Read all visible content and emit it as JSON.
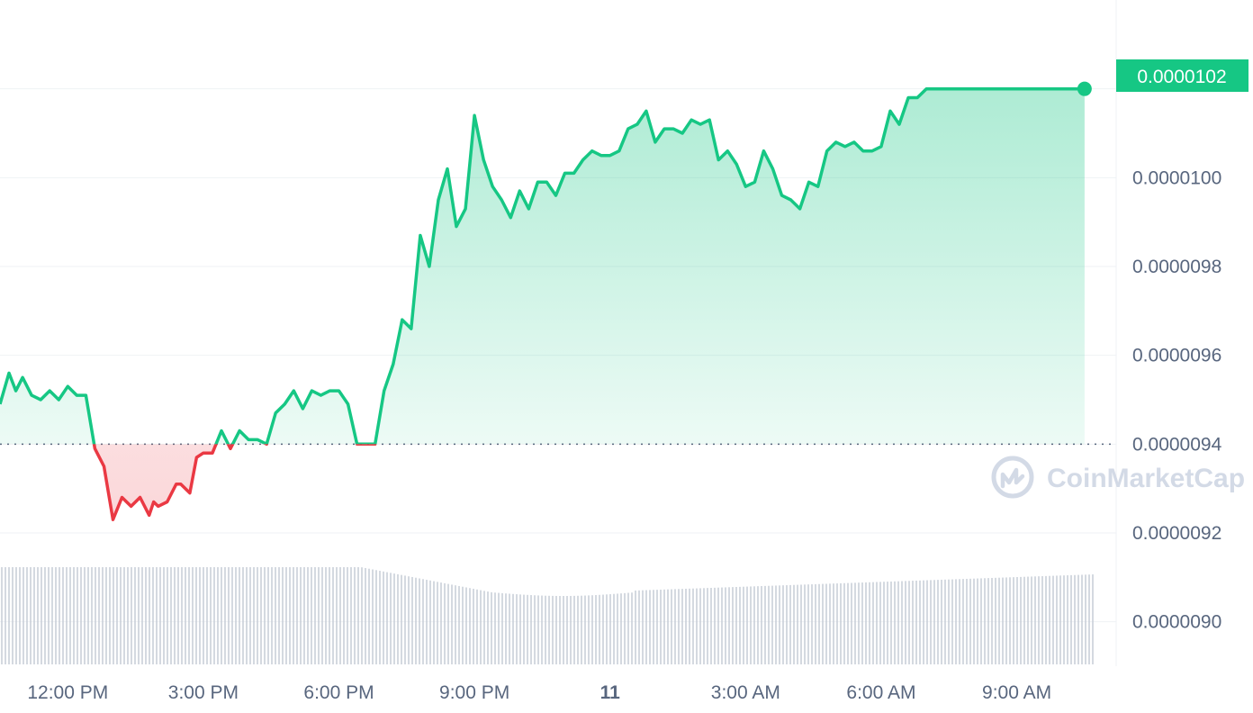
{
  "watermark": {
    "brand": "CoinMarketCap",
    "icon": "coinmarketcap-logo-icon"
  },
  "colors": {
    "up": "#16c784",
    "down": "#ea3943",
    "grid": "#eff2f5",
    "axis_text": "#58667e",
    "baseline": "#58667e",
    "volume": "#c5ccd6"
  },
  "chart_data": {
    "type": "line",
    "title": "",
    "xlabel": "",
    "ylabel": "",
    "ylim": [
      8.9e-06,
      1.04e-05
    ],
    "y_ticks": [
      "0.0000090",
      "0.0000092",
      "0.0000094",
      "0.0000096",
      "0.0000098",
      "0.0000100"
    ],
    "x_ticks": [
      "12:00 PM",
      "3:00 PM",
      "6:00 PM",
      "9:00 PM",
      "11",
      "3:00 AM",
      "6:00 AM",
      "9:00 AM"
    ],
    "x_tick_hours": [
      12,
      15,
      18,
      21,
      24,
      27,
      30,
      33
    ],
    "x_range_hours": [
      10.5,
      35.2
    ],
    "baseline": 9.4e-06,
    "current_price_label": "0.0000102",
    "current_price": 1.02e-05,
    "grid": true,
    "series": [
      {
        "x_hours": [
          10.5,
          10.7,
          10.85,
          11.0,
          11.2,
          11.4,
          11.6,
          11.8,
          12.0,
          12.2,
          12.4,
          12.6,
          12.8,
          13.0,
          13.2,
          13.4,
          13.6,
          13.8,
          13.9,
          14.0,
          14.2,
          14.4,
          14.5,
          14.7,
          14.85,
          15.0,
          15.2,
          15.4,
          15.6,
          15.8,
          16.0,
          16.2,
          16.4,
          16.6,
          16.8,
          17.0,
          17.2,
          17.4,
          17.6,
          17.8,
          18.0,
          18.2,
          18.4,
          18.6,
          18.8,
          19.0,
          19.2,
          19.4,
          19.6,
          19.8,
          20.0,
          20.2,
          20.4,
          20.6,
          20.8,
          21.0,
          21.2,
          21.4,
          21.6,
          21.8,
          22.0,
          22.2,
          22.4,
          22.6,
          22.8,
          23.0,
          23.2,
          23.4,
          23.6,
          23.8,
          24.0,
          24.2,
          24.4,
          24.6,
          24.8,
          25.0,
          25.2,
          25.4,
          25.6,
          25.8,
          26.0,
          26.2,
          26.4,
          26.6,
          26.8,
          27.0,
          27.2,
          27.4,
          27.6,
          27.8,
          28.0,
          28.2,
          28.4,
          28.6,
          28.8,
          29.0,
          29.2,
          29.4,
          29.6,
          29.8,
          30.0,
          30.2,
          30.4,
          30.6,
          30.8,
          31.0,
          31.2,
          31.4,
          31.6,
          31.8,
          32.0,
          32.2,
          32.4,
          32.6,
          32.8,
          33.0,
          33.2,
          33.4,
          33.6,
          33.8,
          34.0,
          34.2,
          34.4,
          34.5
        ],
        "y": [
          9.49e-06,
          9.56e-06,
          9.52e-06,
          9.55e-06,
          9.51e-06,
          9.5e-06,
          9.52e-06,
          9.5e-06,
          9.53e-06,
          9.51e-06,
          9.51e-06,
          9.39e-06,
          9.35e-06,
          9.23e-06,
          9.28e-06,
          9.26e-06,
          9.28e-06,
          9.24e-06,
          9.27e-06,
          9.26e-06,
          9.27e-06,
          9.31e-06,
          9.31e-06,
          9.29e-06,
          9.37e-06,
          9.38e-06,
          9.38e-06,
          9.43e-06,
          9.39e-06,
          9.43e-06,
          9.41e-06,
          9.41e-06,
          9.4e-06,
          9.47e-06,
          9.49e-06,
          9.52e-06,
          9.48e-06,
          9.52e-06,
          9.51e-06,
          9.52e-06,
          9.52e-06,
          9.49e-06,
          9.4e-06,
          9.4e-06,
          9.4e-06,
          9.52e-06,
          9.58e-06,
          9.68e-06,
          9.66e-06,
          9.87e-06,
          9.8e-06,
          9.95e-06,
          1.002e-05,
          9.89e-06,
          9.93e-06,
          1.014e-05,
          1.004e-05,
          9.98e-06,
          9.95e-06,
          9.91e-06,
          9.97e-06,
          9.93e-06,
          9.99e-06,
          9.99e-06,
          9.96e-06,
          1.001e-05,
          1.001e-05,
          1.004e-05,
          1.006e-05,
          1.005e-05,
          1.005e-05,
          1.006e-05,
          1.011e-05,
          1.012e-05,
          1.015e-05,
          1.008e-05,
          1.011e-05,
          1.011e-05,
          1.01e-05,
          1.013e-05,
          1.012e-05,
          1.013e-05,
          1.004e-05,
          1.006e-05,
          1.003e-05,
          9.98e-06,
          9.99e-06,
          1.006e-05,
          1.002e-05,
          9.96e-06,
          9.95e-06,
          9.93e-06,
          9.99e-06,
          9.98e-06,
          1.006e-05,
          1.008e-05,
          1.007e-05,
          1.008e-05,
          1.006e-05,
          1.006e-05,
          1.007e-05,
          1.015e-05,
          1.012e-05,
          1.018e-05,
          1.018e-05,
          1.02e-05,
          1.02e-05,
          1.02e-05,
          1.02e-05,
          1.02e-05,
          1.02e-05,
          1.02e-05,
          1.02e-05,
          1.02e-05,
          1.02e-05,
          1.02e-05,
          1.02e-05,
          1.02e-05,
          1.02e-05,
          1.02e-05,
          1.02e-05,
          1.02e-05,
          1.02e-05,
          1.02e-05
        ]
      }
    ]
  }
}
